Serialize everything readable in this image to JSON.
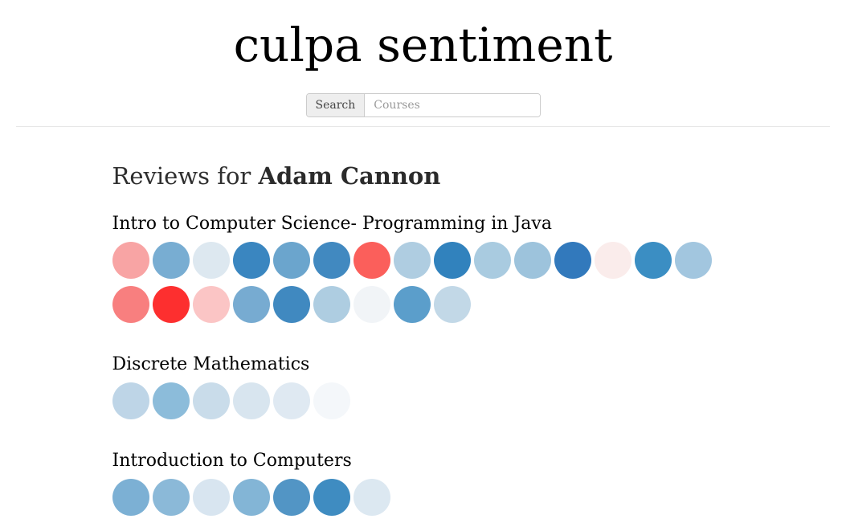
{
  "header": {
    "title": "culpa sentiment"
  },
  "search": {
    "button_label": "Search",
    "placeholder": "Courses"
  },
  "reviews": {
    "heading_prefix": "Reviews for ",
    "professor": "Adam Cannon"
  },
  "courses": [
    {
      "name": "Intro to Computer Science- Programming in Java",
      "review_count": 24,
      "sentiment_colors": [
        "#f8a4a4",
        "#78add2",
        "#dde8f0",
        "#3a86c0",
        "#6ba5cd",
        "#4189c0",
        "#fb5f5b",
        "#afcde1",
        "#3182bd",
        "#a9cbe0",
        "#9dc3dc",
        "#3279bc",
        "#faeceb",
        "#3b8ec3",
        "#a2c6df",
        "#f87f7f",
        "#fd2f2f",
        "#fbc5c5",
        "#77abd1",
        "#4089c0",
        "#aecde1",
        "#f1f4f7",
        "#5b9ecb",
        "#c2d8e7"
      ]
    },
    {
      "name": "Discrete Mathematics",
      "review_count": 6,
      "sentiment_colors": [
        "#bed5e7",
        "#8cbcda",
        "#c9dcea",
        "#d8e5ef",
        "#dfe9f2",
        "#f4f7fa"
      ]
    },
    {
      "name": "Introduction to Computers",
      "review_count": 7,
      "sentiment_colors": [
        "#7cb0d4",
        "#8bb9d8",
        "#d8e5f0",
        "#83b5d6",
        "#5295c5",
        "#3f8cc1",
        "#dce8f1"
      ]
    }
  ]
}
